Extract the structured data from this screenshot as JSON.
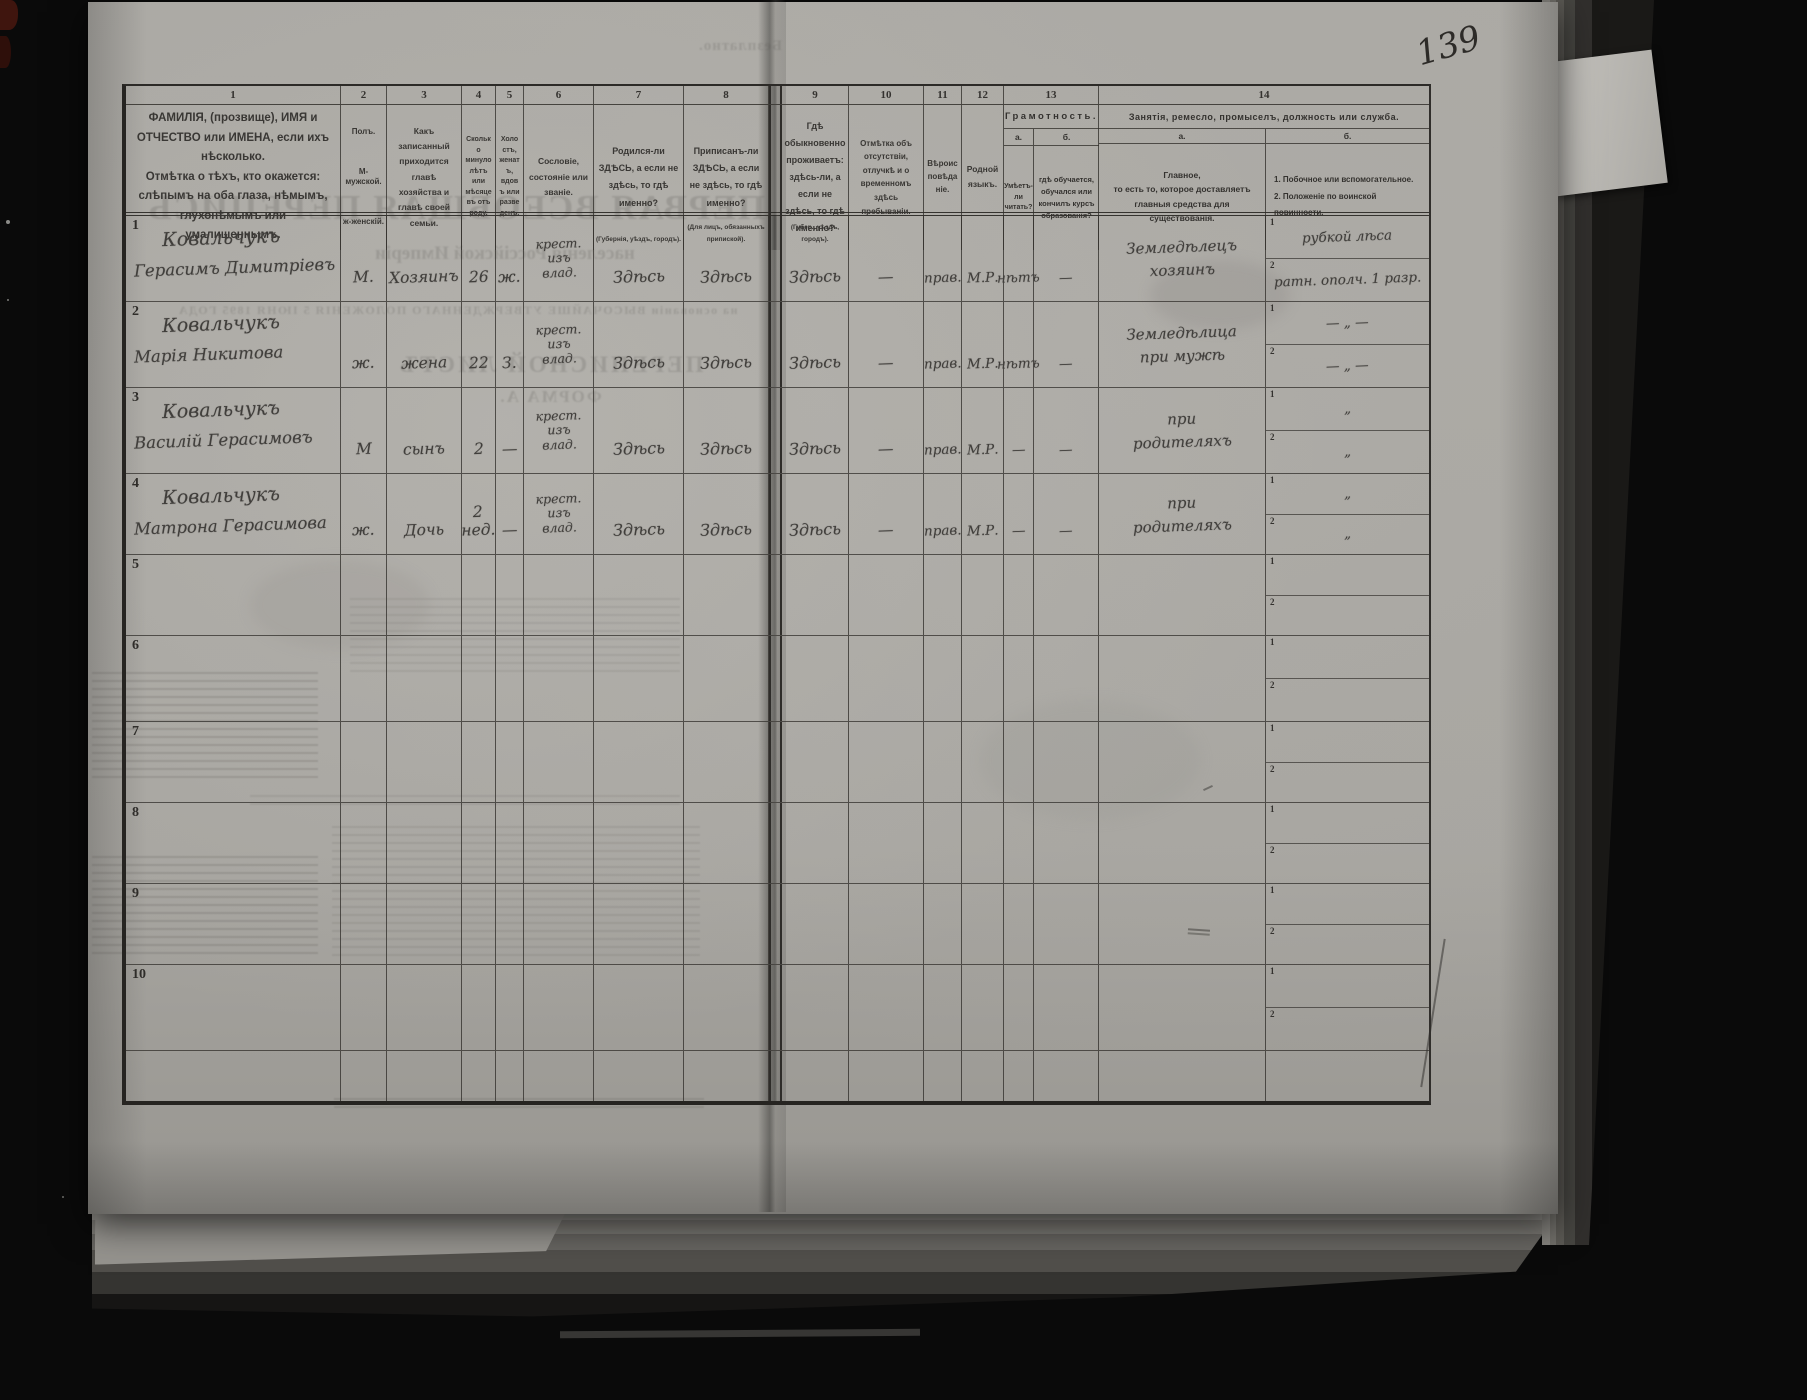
{
  "scan": {
    "page_number": "139",
    "paper_color": "#aaa8a3",
    "ink_color": "#403e3b",
    "line_color": "#34322f"
  },
  "ghosts": {
    "free_stamp": "Безплатно.",
    "title": "ПЕРВАЯ ВСЕОБЩАЯ ПЕРЕПИСЬ",
    "subtitle": "населенія Россійской Имперіи",
    "law_line": "на основаніи ВЫСОЧАЙШЕ УТВЕРЖДЕННАГО ПОЛОЖЕНІЯ 5 ІЮНЯ 1895 ГОДА",
    "sheet": "ПЕРЕПИСНОЙ ЛИСТЪ",
    "form": "ФОРМА А."
  },
  "table": {
    "header": {
      "numbers": [
        "1",
        "2",
        "3",
        "4",
        "5",
        "6",
        "7",
        "8",
        "9",
        "10",
        "11",
        "12",
        "13",
        "14"
      ],
      "col1_line1": "ФАМИЛІЯ, (прозвище), ИМЯ и ОТЧЕСТВО или ИМЕНА, если ихъ нѣсколько.",
      "col1_line2": "Отмѣтка о тѣхъ, кто окажется: слѣпымъ на оба глаза, нѣмымъ, глухонѣмымъ или умалишеннымъ.",
      "col2_title": "Полъ.",
      "col2_m": "М-мужской.",
      "col2_f": "ж-женскій.",
      "col3": "Какъ записанный приходится главѣ хозяйства и главѣ своей семьи.",
      "col4": "Сколько минуло лѣтъ или мѣсяцевъ отъ роду.",
      "col5": "Холостъ, женатъ, вдовъ или разведенъ.",
      "col6": "Сословіе, состояніе или званіе.",
      "col7": "Родился-ли ЗДѢСЬ, а если не здѣсь, то гдѣ именно?",
      "col7_note": "(Губернія, уѣздъ, городъ).",
      "col8": "Приписанъ-ли ЗДѢСЬ, а если не здѣсь, то гдѣ именно?",
      "col8_note": "(Для лицъ, обязанныхъ припиской).",
      "col9": "Гдѣ обыкновенно проживаетъ: здѣсь-ли, а если не здѣсь, то гдѣ именно?",
      "col9_note": "(Губер., уѣздъ, городъ).",
      "col10": "Отмѣтка объ отсутствіи, отлучкѣ и о временномъ здѣсь пребываніи.",
      "col11": "Вѣроисповѣданіе.",
      "col12": "Родной языкъ.",
      "col13_title": "Грамотность.",
      "col13a_letter": "а.",
      "col13a": "Умѣетъ-ли читать?",
      "col13b_letter": "б.",
      "col13b": "гдѣ обучается, обучался или кончилъ курсъ образованія?",
      "col14_title": "Занятія, ремесло, промыселъ, должность или служба.",
      "col14a_letter": "а.",
      "col14a_line1": "Главное,",
      "col14a_line2": "то есть то, которое доставляетъ",
      "col14a_line3": "главныя средства для существованія.",
      "col14b_letter": "б.",
      "col14b_line1": "1. Побочное или вспомогательное.",
      "col14b_line2": "2. Положеніе по воинской повинности."
    },
    "sub_labels": [
      "1",
      "2"
    ],
    "rows": [
      {
        "n": "1",
        "surname": "Ковальчукъ",
        "name": "Герасимъ Димитріевъ",
        "sex": "М.",
        "relation": "Хозяинъ",
        "age": "26",
        "marital": "ж.",
        "estate": "крест. изъ влад.",
        "born": "Здѣсь",
        "registered": "Здѣсь",
        "resides": "Здѣсь",
        "absence": "—",
        "religion": "прав.",
        "language": "М.Р.",
        "reads": "нѣтъ",
        "education": "—",
        "occupation": "Земледѣлецъ хозяинъ",
        "side": "рубкой лѣса",
        "military": "ратн. ополч. 1 разр."
      },
      {
        "n": "2",
        "surname": "Ковальчукъ",
        "name": "Марія Никитова",
        "sex": "ж.",
        "relation": "жена",
        "age": "22",
        "marital": "З.",
        "estate": "крест. изъ влад.",
        "born": "Здѣсь",
        "registered": "Здѣсь",
        "resides": "Здѣсь",
        "absence": "—",
        "religion": "прав.",
        "language": "М.Р.",
        "reads": "нѣтъ",
        "education": "—",
        "occupation": "Земледѣлица при мужѣ",
        "side": "— „ —",
        "military": "— „ —"
      },
      {
        "n": "3",
        "surname": "Ковальчукъ",
        "name": "Василій Герасимовъ",
        "sex": "М",
        "relation": "сынъ",
        "age": "2",
        "marital": "—",
        "estate": "крест. изъ влад.",
        "born": "Здѣсь",
        "registered": "Здѣсь",
        "resides": "Здѣсь",
        "absence": "—",
        "religion": "прав.",
        "language": "М.Р.",
        "reads": "—",
        "education": "—",
        "occupation": "при родителяхъ",
        "side": "„",
        "military": "„"
      },
      {
        "n": "4",
        "surname": "Ковальчукъ",
        "name": "Матрона Герасимова",
        "sex": "ж.",
        "relation": "Дочь",
        "age": "2 нед.",
        "marital": "—",
        "estate": "крест. изъ влад.",
        "born": "Здѣсь",
        "registered": "Здѣсь",
        "resides": "Здѣсь",
        "absence": "—",
        "religion": "прав.",
        "language": "М.Р.",
        "reads": "—",
        "education": "—",
        "occupation": "при родителяхъ",
        "side": "„",
        "military": "„"
      },
      {
        "n": "5",
        "surname": "",
        "name": "",
        "sex": "",
        "relation": "",
        "age": "",
        "marital": "",
        "estate": "",
        "born": "",
        "registered": "",
        "resides": "",
        "absence": "",
        "religion": "",
        "language": "",
        "reads": "",
        "education": "",
        "occupation": "",
        "side": "",
        "military": ""
      },
      {
        "n": "6",
        "surname": "",
        "name": "",
        "sex": "",
        "relation": "",
        "age": "",
        "marital": "",
        "estate": "",
        "born": "",
        "registered": "",
        "resides": "",
        "absence": "",
        "religion": "",
        "language": "",
        "reads": "",
        "education": "",
        "occupation": "",
        "side": "",
        "military": ""
      },
      {
        "n": "7",
        "surname": "",
        "name": "",
        "sex": "",
        "relation": "",
        "age": "",
        "marital": "",
        "estate": "",
        "born": "",
        "registered": "",
        "resides": "",
        "absence": "",
        "religion": "",
        "language": "",
        "reads": "",
        "education": "",
        "occupation": "",
        "side": "",
        "military": ""
      },
      {
        "n": "8",
        "surname": "",
        "name": "",
        "sex": "",
        "relation": "",
        "age": "",
        "marital": "",
        "estate": "",
        "born": "",
        "registered": "",
        "resides": "",
        "absence": "",
        "religion": "",
        "language": "",
        "reads": "",
        "education": "",
        "occupation": "",
        "side": "",
        "military": ""
      },
      {
        "n": "9",
        "surname": "",
        "name": "",
        "sex": "",
        "relation": "",
        "age": "",
        "marital": "",
        "estate": "",
        "born": "",
        "registered": "",
        "resides": "",
        "absence": "",
        "religion": "",
        "language": "",
        "reads": "",
        "education": "",
        "occupation": "",
        "side": "",
        "military": ""
      },
      {
        "n": "10",
        "surname": "",
        "name": "",
        "sex": "",
        "relation": "",
        "age": "",
        "marital": "",
        "estate": "",
        "born": "",
        "registered": "",
        "resides": "",
        "absence": "",
        "religion": "",
        "language": "",
        "reads": "",
        "education": "",
        "occupation": "",
        "side": "",
        "military": ""
      }
    ]
  }
}
